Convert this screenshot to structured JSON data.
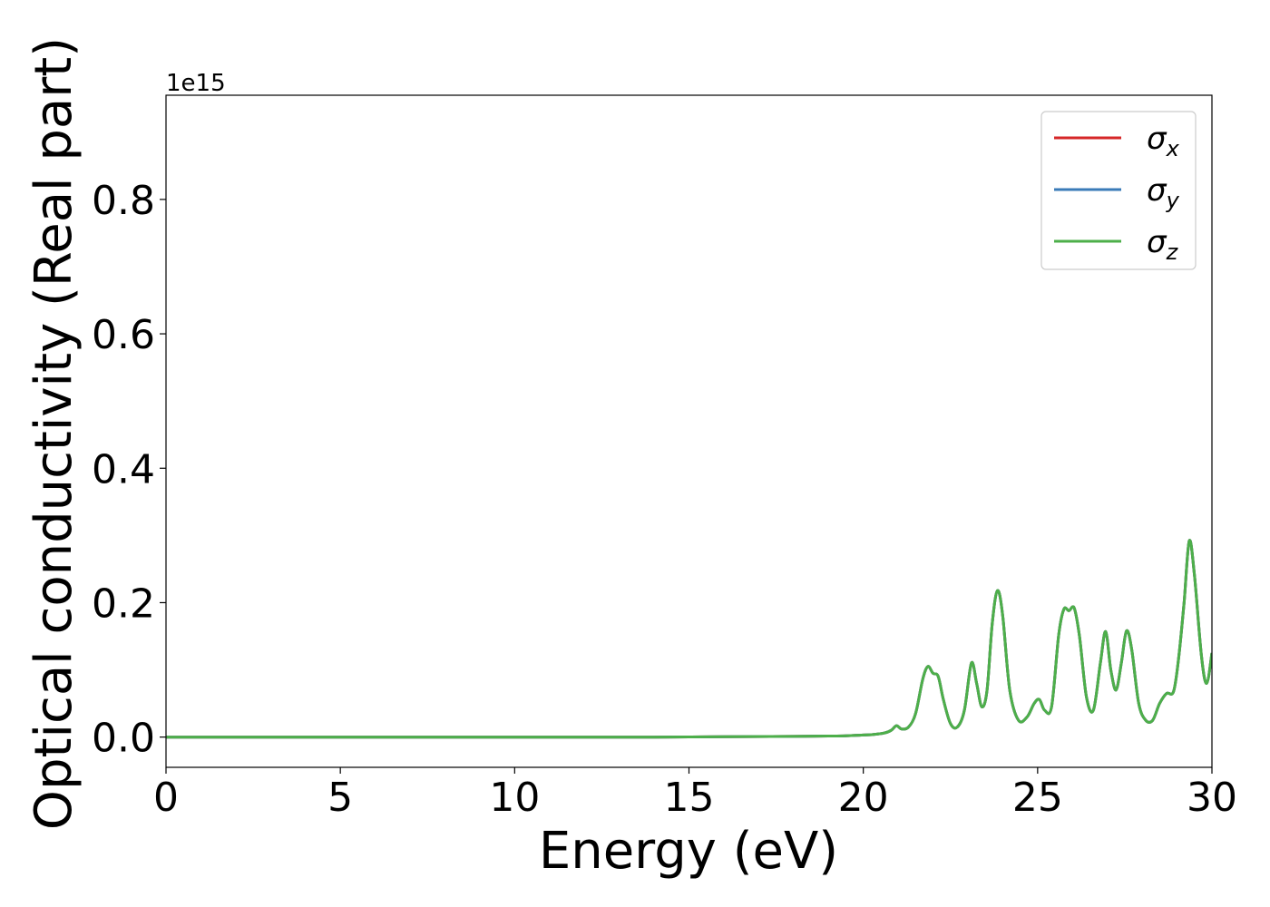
{
  "chart_data": {
    "type": "line",
    "xlabel": "Energy (eV)",
    "ylabel": "Optical conductivity (Real part)",
    "offset_text": "1e15",
    "xlim": [
      0,
      30
    ],
    "ylim": [
      -0.045,
      0.955
    ],
    "x_ticks": [
      0,
      5,
      10,
      15,
      20,
      25,
      30
    ],
    "x_tick_labels": [
      "0",
      "5",
      "10",
      "15",
      "20",
      "25",
      "30"
    ],
    "y_ticks": [
      0.0,
      0.2,
      0.4,
      0.6,
      0.8
    ],
    "y_tick_labels": [
      "0.0",
      "0.2",
      "0.4",
      "0.6",
      "0.8"
    ],
    "grid": false,
    "legend_position": "top-right",
    "colors": {
      "sigma_x": "#d62728",
      "sigma_y": "#3a7bb8",
      "sigma_z": "#4daf4a"
    },
    "legend": [
      {
        "symbol": "σ",
        "sub": "x",
        "color": "#d62728"
      },
      {
        "symbol": "σ",
        "sub": "y",
        "color": "#3a7bb8"
      },
      {
        "symbol": "σ",
        "sub": "z",
        "color": "#4daf4a"
      }
    ],
    "x": [
      0,
      2,
      4,
      6,
      8,
      10,
      12,
      14,
      16,
      18,
      19,
      19.5,
      20,
      20.3,
      20.6,
      20.8,
      20.95,
      21.1,
      21.3,
      21.5,
      21.7,
      21.85,
      22.0,
      22.15,
      22.3,
      22.5,
      22.7,
      22.9,
      23.1,
      23.25,
      23.4,
      23.55,
      23.7,
      23.85,
      24.0,
      24.2,
      24.45,
      24.7,
      24.9,
      25.05,
      25.2,
      25.4,
      25.6,
      25.75,
      25.9,
      26.05,
      26.2,
      26.4,
      26.6,
      26.8,
      26.95,
      27.1,
      27.25,
      27.4,
      27.55,
      27.7,
      27.9,
      28.1,
      28.3,
      28.5,
      28.7,
      28.9,
      29.05,
      29.2,
      29.35,
      29.5,
      29.7,
      29.85,
      30.0
    ],
    "series": [
      {
        "name": "σx",
        "values": [
          0,
          0,
          0,
          0,
          0,
          0,
          0,
          0,
          0.0005,
          0.001,
          0.0015,
          0.002,
          0.003,
          0.004,
          0.006,
          0.01,
          0.017,
          0.012,
          0.015,
          0.035,
          0.085,
          0.105,
          0.095,
          0.09,
          0.055,
          0.02,
          0.015,
          0.04,
          0.11,
          0.08,
          0.045,
          0.07,
          0.17,
          0.218,
          0.18,
          0.07,
          0.025,
          0.03,
          0.05,
          0.056,
          0.04,
          0.045,
          0.15,
          0.19,
          0.188,
          0.192,
          0.15,
          0.06,
          0.04,
          0.11,
          0.157,
          0.1,
          0.07,
          0.11,
          0.158,
          0.13,
          0.05,
          0.025,
          0.025,
          0.05,
          0.065,
          0.068,
          0.12,
          0.2,
          0.292,
          0.24,
          0.12,
          0.08,
          0.125
        ]
      },
      {
        "name": "σy",
        "values": [
          0,
          0,
          0,
          0,
          0,
          0,
          0,
          0,
          0.0005,
          0.001,
          0.0015,
          0.002,
          0.003,
          0.004,
          0.006,
          0.01,
          0.017,
          0.012,
          0.015,
          0.035,
          0.085,
          0.105,
          0.095,
          0.09,
          0.055,
          0.02,
          0.015,
          0.04,
          0.11,
          0.08,
          0.045,
          0.07,
          0.17,
          0.218,
          0.18,
          0.07,
          0.025,
          0.03,
          0.05,
          0.056,
          0.04,
          0.045,
          0.15,
          0.19,
          0.188,
          0.192,
          0.15,
          0.06,
          0.04,
          0.11,
          0.157,
          0.1,
          0.07,
          0.11,
          0.158,
          0.13,
          0.05,
          0.025,
          0.025,
          0.05,
          0.065,
          0.068,
          0.12,
          0.2,
          0.292,
          0.24,
          0.12,
          0.08,
          0.125
        ]
      },
      {
        "name": "σz",
        "values": [
          0,
          0,
          0,
          0,
          0,
          0,
          0,
          0,
          0.0005,
          0.001,
          0.0015,
          0.002,
          0.003,
          0.004,
          0.006,
          0.01,
          0.017,
          0.012,
          0.015,
          0.035,
          0.085,
          0.105,
          0.095,
          0.09,
          0.055,
          0.02,
          0.015,
          0.04,
          0.11,
          0.08,
          0.045,
          0.07,
          0.17,
          0.218,
          0.18,
          0.07,
          0.025,
          0.03,
          0.05,
          0.056,
          0.04,
          0.045,
          0.15,
          0.19,
          0.188,
          0.192,
          0.15,
          0.06,
          0.04,
          0.11,
          0.157,
          0.1,
          0.07,
          0.11,
          0.158,
          0.13,
          0.05,
          0.025,
          0.025,
          0.05,
          0.065,
          0.068,
          0.12,
          0.2,
          0.292,
          0.24,
          0.12,
          0.08,
          0.125
        ]
      }
    ]
  }
}
